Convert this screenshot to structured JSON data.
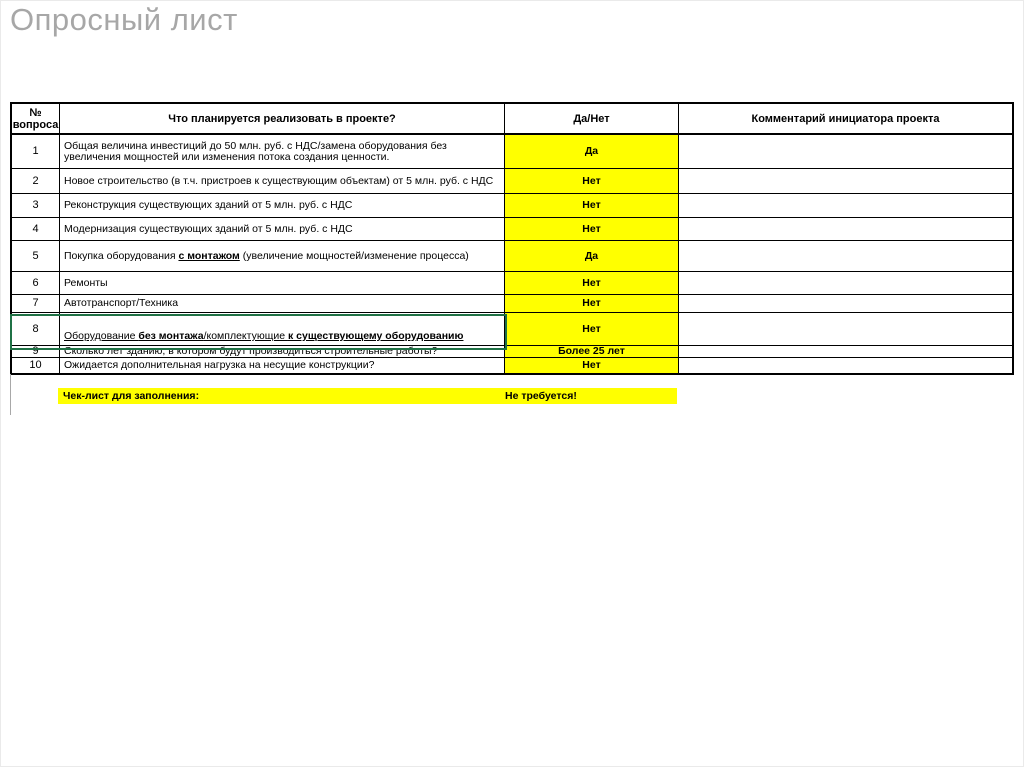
{
  "page": {
    "title": "Опросный лист"
  },
  "colors": {
    "highlight_yellow": "#ffff00",
    "selection_green": "#1f7145",
    "title_gray": "#a7a7a7"
  },
  "table": {
    "headers": {
      "number": "№ вопроса",
      "question": "Что планируется реализовать в проекте?",
      "answer": "Да/Нет",
      "comment": "Комментарий инициатора проекта"
    },
    "rows": [
      {
        "number": "1",
        "question_parts": [
          {
            "text": "Общая величина инвестиций до 50 млн. руб. с НДС/замена оборудования без увеличения мощностей или изменения потока создания ценности.",
            "bold": false,
            "underline": false
          }
        ],
        "answer": "Да",
        "comment": "",
        "selected": false
      },
      {
        "number": "2",
        "question_parts": [
          {
            "text": "Новое строительство (в т.ч. пристроев к существующим объектам) от 5 млн. руб. с НДС",
            "bold": false,
            "underline": false
          }
        ],
        "answer": "Нет",
        "comment": "",
        "selected": false
      },
      {
        "number": "3",
        "question_parts": [
          {
            "text": "Реконструкция существующих зданий от 5 млн. руб. с НДС",
            "bold": false,
            "underline": false
          }
        ],
        "answer": "Нет",
        "comment": "",
        "selected": false
      },
      {
        "number": "4",
        "question_parts": [
          {
            "text": "Модернизация существующих зданий от 5 млн. руб. с НДС",
            "bold": false,
            "underline": false
          }
        ],
        "answer": "Нет",
        "comment": "",
        "selected": false
      },
      {
        "number": "5",
        "question_parts": [
          {
            "text": "Покупка оборудования ",
            "bold": false,
            "underline": false
          },
          {
            "text": "с монтажом",
            "bold": true,
            "underline": true
          },
          {
            "text": " (увеличение мощностей/изменение процесса)",
            "bold": false,
            "underline": false
          }
        ],
        "answer": "Да",
        "comment": "",
        "selected": false
      },
      {
        "number": "6",
        "question_parts": [
          {
            "text": "Ремонты",
            "bold": false,
            "underline": false
          }
        ],
        "answer": "Нет",
        "comment": "",
        "selected": false
      },
      {
        "number": "7",
        "question_parts": [
          {
            "text": "Автотранспорт/Техника",
            "bold": false,
            "underline": false
          }
        ],
        "answer": "Нет",
        "comment": "",
        "selected": false
      },
      {
        "number": "8",
        "question_parts": [
          {
            "text": "Оборудование ",
            "bold": false,
            "underline": true
          },
          {
            "text": "без монтажа",
            "bold": true,
            "underline": true
          },
          {
            "text": "/комплектующие ",
            "bold": false,
            "underline": true
          },
          {
            "text": "к существующему оборудованию",
            "bold": true,
            "underline": true
          }
        ],
        "answer": "Нет",
        "comment": "",
        "selected": true
      },
      {
        "number": "9",
        "question_parts": [
          {
            "text": "Сколько лет зданию, в котором будут производиться строительные работы?",
            "bold": false,
            "underline": false
          }
        ],
        "answer": "Более 25 лет",
        "comment": "",
        "selected": false
      },
      {
        "number": "10",
        "question_parts": [
          {
            "text": "Ожидается дополнительная нагрузка на несущие конструкции?",
            "bold": false,
            "underline": false
          }
        ],
        "answer": "Нет",
        "comment": "",
        "selected": false
      }
    ]
  },
  "checklist": {
    "label": "Чек-лист для заполнения:",
    "value": "Не требуется!"
  }
}
